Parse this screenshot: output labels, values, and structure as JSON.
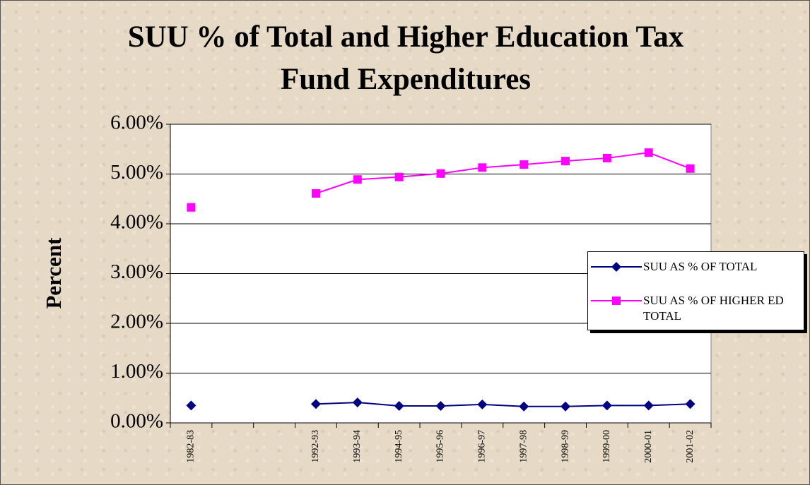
{
  "chart_data": {
    "type": "line",
    "title": "SUU % of Total and Higher Education Tax Fund Expenditures",
    "y_label": "Percent",
    "categories": [
      "1982-83",
      null,
      null,
      "1992-93",
      "1993-94",
      "1994-95",
      "1995-96",
      "1996-97",
      "1997-98",
      "1998-99",
      "1999-00",
      "2000-01",
      "2001-02"
    ],
    "series": [
      {
        "name": "SUU AS % OF TOTAL",
        "color": "#000080",
        "marker": "diamond",
        "values": [
          0.35,
          null,
          null,
          0.38,
          0.41,
          0.34,
          0.34,
          0.37,
          0.33,
          0.33,
          0.35,
          0.35,
          0.38
        ]
      },
      {
        "name": "SUU AS % OF HIGHER ED TOTAL",
        "color": "#ff00ff",
        "marker": "square",
        "values": [
          4.33,
          null,
          null,
          4.61,
          4.89,
          4.94,
          5.01,
          5.13,
          5.19,
          5.26,
          5.32,
          5.43,
          5.11
        ]
      }
    ],
    "ylim": [
      0,
      6
    ],
    "yticks": [
      {
        "value": 0,
        "label": "0.00%"
      },
      {
        "value": 1,
        "label": "1.00%"
      },
      {
        "value": 2,
        "label": "2.00%"
      },
      {
        "value": 3,
        "label": "3.00%"
      },
      {
        "value": 4,
        "label": "4.00%"
      },
      {
        "value": 5,
        "label": "5.00%"
      },
      {
        "value": 6,
        "label": "6.00%"
      }
    ],
    "grid": true,
    "legend": "right"
  }
}
